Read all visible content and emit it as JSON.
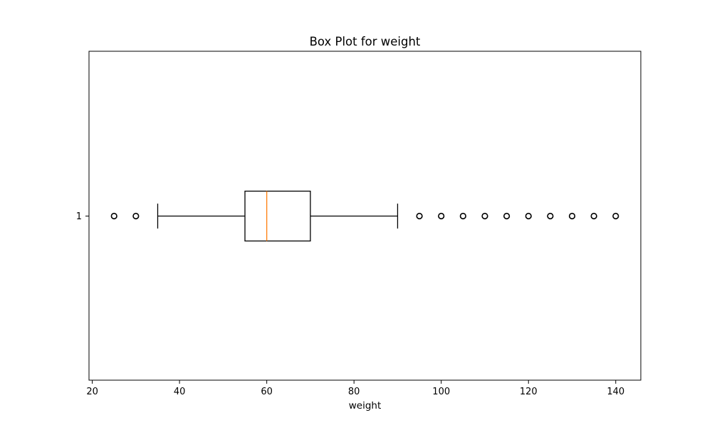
{
  "chart_data": {
    "type": "box",
    "orientation": "horizontal",
    "title": "Box Plot for weight",
    "xlabel": "weight",
    "ylabel": "",
    "xlim": [
      19.25,
      145.75
    ],
    "x_ticks": [
      20,
      40,
      60,
      80,
      100,
      120,
      140
    ],
    "y_categories": [
      "1"
    ],
    "grid": false,
    "series": [
      {
        "category": "1",
        "whisker_low": 35,
        "q1": 55,
        "median": 60,
        "q3": 70,
        "whisker_high": 90,
        "outliers": [
          25,
          30,
          95,
          100,
          105,
          110,
          115,
          120,
          125,
          130,
          135,
          140
        ]
      }
    ],
    "colors": {
      "box": "#000000",
      "median": "#ff7f0e",
      "outlier": "#000000",
      "frame": "#000000"
    }
  }
}
